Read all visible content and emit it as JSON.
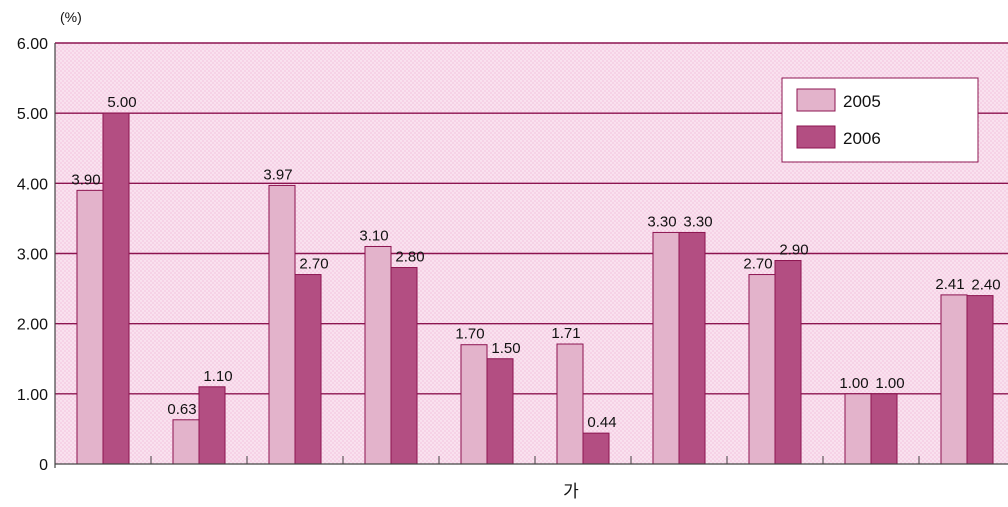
{
  "chart_data": {
    "type": "bar",
    "unit_label": "(%)",
    "xlabel": "가",
    "ylabel": "",
    "ylim": [
      0,
      6
    ],
    "y_ticks": [
      "0",
      "1.00",
      "2.00",
      "3.00",
      "4.00",
      "5.00",
      "6.00"
    ],
    "grid": true,
    "legend_position": "top-right",
    "categories": [
      "",
      "",
      "",
      "",
      "",
      "",
      "",
      "",
      "",
      ""
    ],
    "series": [
      {
        "name": "2005",
        "color": "#e3b3cb",
        "values": [
          3.9,
          0.63,
          3.97,
          3.1,
          1.7,
          1.71,
          3.3,
          2.7,
          1.0,
          2.41
        ],
        "labels": [
          "3.90",
          "0.63",
          "3.97",
          "3.10",
          "1.70",
          "1.71",
          "3.30",
          "2.70",
          "1.00",
          "2.41"
        ]
      },
      {
        "name": "2006",
        "color": "#b34e82",
        "values": [
          5.0,
          1.1,
          2.7,
          2.8,
          1.5,
          0.44,
          3.3,
          2.9,
          1.0,
          2.4
        ],
        "labels": [
          "5.00",
          "1.10",
          "2.70",
          "2.80",
          "1.50",
          "0.44",
          "3.30",
          "2.90",
          "1.00",
          "2.40"
        ]
      }
    ],
    "plot_background": "#f6d2e6",
    "gridline_color": "#8c1450"
  }
}
